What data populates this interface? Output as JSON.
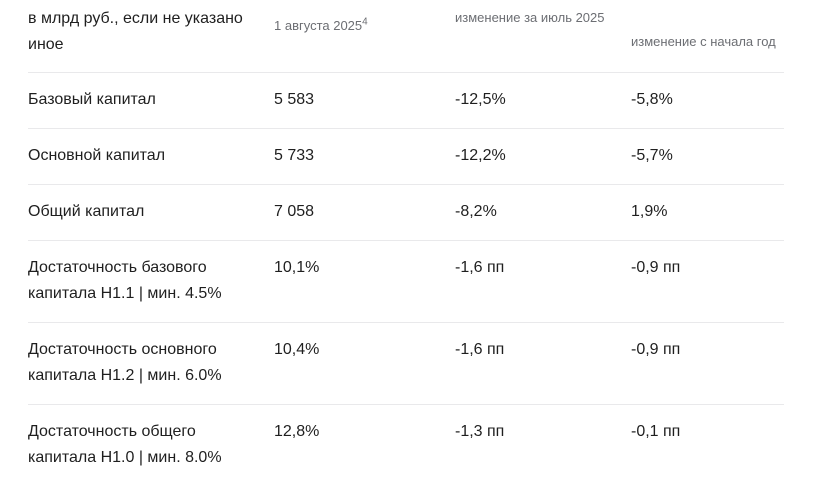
{
  "colors": {
    "text": "#1f1f1f",
    "muted_header": "#6c6e73",
    "divider": "#e9e9eb",
    "background": "#ffffff"
  },
  "header": {
    "units_label": "в млрд руб., если не указано иное",
    "date_label": "1 августа 2025",
    "date_footnote": "4",
    "month_change_label": "изменение за июль 2025",
    "ytd_change_label": "изменение с начала год"
  },
  "chart_data": {
    "type": "table",
    "columns": [
      "в млрд руб., если не указано иное",
      "1 августа 2025⁴",
      "изменение за июль 2025",
      "изменение с начала год"
    ],
    "rows": [
      [
        "Базовый капитал",
        "5 583",
        "-12,5%",
        "-5,8%"
      ],
      [
        "Основной капитал",
        "5 733",
        "-12,2%",
        "-5,7%"
      ],
      [
        "Общий капитал",
        "7 058",
        "-8,2%",
        "1,9%"
      ],
      [
        "Достаточность базового капитала Н1.1 | мин. 4.5%",
        "10,1%",
        "-1,6 пп",
        "-0,9 пп"
      ],
      [
        "Достаточность основного капитала Н1.2 | мин. 6.0%",
        "10,4%",
        "-1,6 пп",
        "-0,9 пп"
      ],
      [
        "Достаточность общего капитала Н1.0 | мин. 8.0%",
        "12,8%",
        "-1,3 пп",
        "-0,1 пп"
      ]
    ]
  }
}
